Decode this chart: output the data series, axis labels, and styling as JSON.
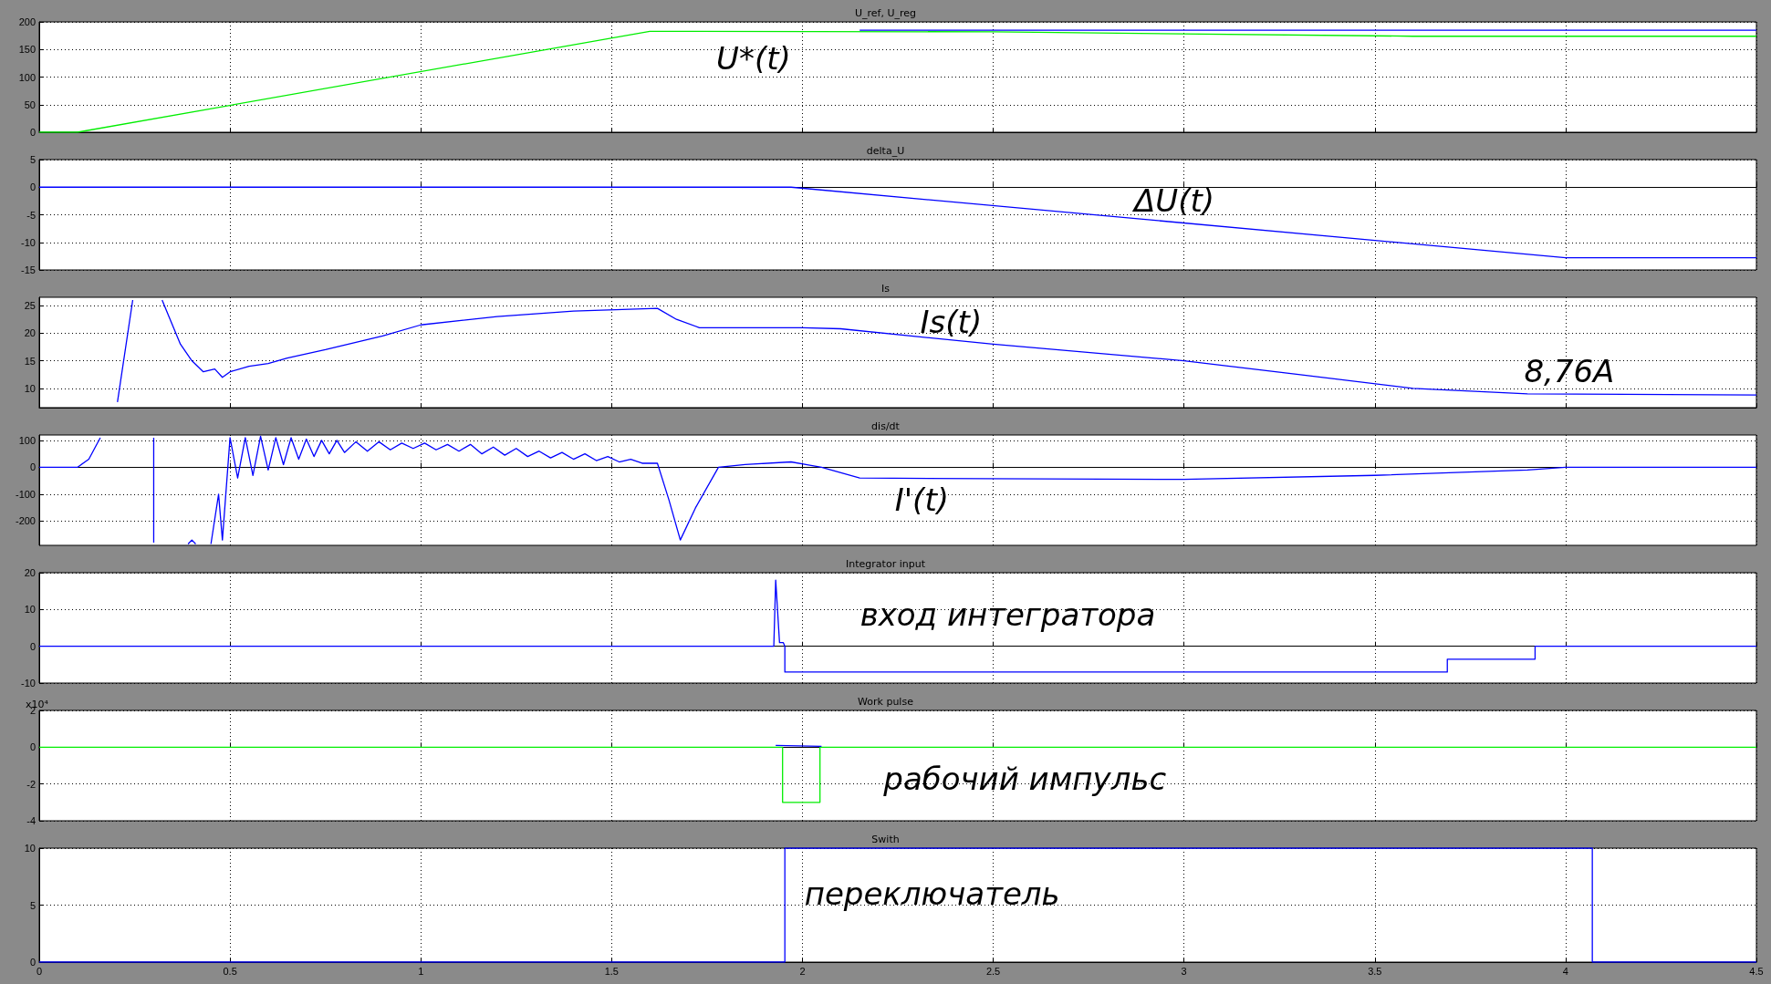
{
  "chart_data": [
    {
      "type": "line",
      "title": "U_ref, U_reg",
      "xlim": [
        0,
        4.5
      ],
      "xticks": [
        0,
        0.5,
        1,
        1.5,
        2,
        2.5,
        3,
        3.5,
        4,
        4.5
      ],
      "ylim": [
        0,
        200
      ],
      "yticks": [
        0,
        50,
        100,
        150,
        200
      ],
      "grid": true,
      "tick_labels": "y",
      "series": [
        {
          "color": "#00ee00",
          "x": [
            0,
            0.1,
            1.6,
            2.5,
            3.6,
            4.5
          ],
          "values": [
            0,
            0,
            183,
            182,
            174,
            174
          ]
        },
        {
          "color": "#0000ff",
          "x": [
            2.15,
            4.5
          ],
          "values": [
            185,
            185
          ]
        }
      ],
      "annotations": [
        "U*(t)"
      ]
    },
    {
      "type": "line",
      "title": "delta_U",
      "xlim": [
        0,
        4.5
      ],
      "xticks": [
        0,
        0.5,
        1,
        1.5,
        2,
        2.5,
        3,
        3.5,
        4,
        4.5
      ],
      "ylim": [
        -15,
        5
      ],
      "yticks": [
        -15,
        -10,
        -5,
        0,
        5
      ],
      "grid": true,
      "tick_labels": "y",
      "series": [
        {
          "color": "#0000ff",
          "x": [
            0,
            1.97,
            4.0,
            4.5
          ],
          "values": [
            0,
            0,
            -12.8,
            -12.8
          ]
        }
      ],
      "annotations": [
        "ΔU(t)"
      ]
    },
    {
      "type": "line",
      "title": "Is",
      "xlim": [
        0,
        4.5
      ],
      "xticks": [
        0,
        0.5,
        1,
        1.5,
        2,
        2.5,
        3,
        3.5,
        4,
        4.5
      ],
      "ylim": [
        6.5,
        26.5
      ],
      "yticks": [
        10,
        15,
        20,
        25
      ],
      "grid": true,
      "tick_labels": "y",
      "series": [
        {
          "color": "#0000ff",
          "x": [
            0.205,
            0.245,
            0.28,
            0.322,
            0.34,
            0.37,
            0.4,
            0.43,
            0.46,
            0.48,
            0.5,
            0.55,
            0.6,
            0.65,
            0.75,
            0.9,
            1.0,
            1.2,
            1.4,
            1.62,
            1.67,
            1.73,
            2.0,
            2.1,
            2.5,
            3.0,
            3.3,
            3.6,
            3.9,
            4.5
          ],
          "values": [
            7.5,
            26,
            null,
            26,
            23,
            18,
            15,
            13,
            13.5,
            12,
            13,
            14,
            14.5,
            15.5,
            17,
            19.5,
            21.5,
            23,
            24,
            24.5,
            22.5,
            21,
            21,
            20.8,
            18,
            15,
            12.5,
            10,
            9,
            8.8
          ]
        }
      ],
      "annotations": [
        "Is(t)",
        "8,76A"
      ]
    },
    {
      "type": "line",
      "title": "dis/dt",
      "xlim": [
        0,
        4.5
      ],
      "xticks": [
        0,
        0.5,
        1,
        1.5,
        2,
        2.5,
        3,
        3.5,
        4,
        4.5
      ],
      "ylim": [
        -290,
        120
      ],
      "yticks": [
        -200,
        -100,
        0,
        100
      ],
      "grid": true,
      "tick_labels": "y",
      "series": [
        {
          "color": "#0000ff",
          "x": [
            0,
            0.1,
            0.13,
            0.16,
            0.23,
            0.3,
            0.3,
            0.35,
            0.39,
            0.4,
            0.41,
            0.43,
            0.45,
            0.47,
            0.48,
            0.5,
            0.52,
            0.54,
            0.56,
            0.58,
            0.6,
            0.62,
            0.64,
            0.66,
            0.68,
            0.7,
            0.72,
            0.74,
            0.76,
            0.78,
            0.8,
            0.83,
            0.86,
            0.89,
            0.92,
            0.95,
            0.98,
            1.01,
            1.04,
            1.07,
            1.1,
            1.13,
            1.16,
            1.19,
            1.22,
            1.25,
            1.28,
            1.31,
            1.34,
            1.37,
            1.4,
            1.43,
            1.46,
            1.49,
            1.52,
            1.55,
            1.58,
            1.62,
            1.65,
            1.68,
            1.72,
            1.78,
            1.85,
            1.97,
            2.05,
            2.15,
            3.0,
            3.5,
            3.9,
            4.0,
            4.5
          ],
          "values": [
            0,
            0,
            30,
            110,
            null,
            110,
            -280,
            null,
            -285,
            -270,
            -285,
            null,
            -285,
            -100,
            -270,
            110,
            -40,
            110,
            -30,
            115,
            -10,
            110,
            10,
            110,
            30,
            105,
            40,
            100,
            50,
            100,
            55,
            95,
            60,
            95,
            65,
            90,
            70,
            90,
            65,
            85,
            60,
            85,
            50,
            75,
            45,
            70,
            40,
            60,
            35,
            55,
            30,
            50,
            25,
            40,
            20,
            30,
            15,
            15,
            -120,
            -270,
            -150,
            0,
            10,
            20,
            0,
            -40,
            -45,
            -30,
            -10,
            0,
            0
          ]
        }
      ],
      "annotations": [
        "I'(t)"
      ]
    },
    {
      "type": "line",
      "title": "Integrator input",
      "xlim": [
        0,
        4.5
      ],
      "xticks": [
        0,
        0.5,
        1,
        1.5,
        2,
        2.5,
        3,
        3.5,
        4,
        4.5
      ],
      "ylim": [
        -10,
        20
      ],
      "yticks": [
        -10,
        0,
        10,
        20
      ],
      "grid": true,
      "tick_labels": "y",
      "series": [
        {
          "color": "#0000ff",
          "x": [
            0,
            1.925,
            1.93,
            1.94,
            1.95,
            1.954,
            1.954,
            3.69,
            3.69,
            3.92,
            3.92,
            4.5
          ],
          "values": [
            0,
            0,
            18,
            1,
            1,
            0,
            -7,
            -7,
            -3.5,
            -3.5,
            0,
            0
          ]
        }
      ],
      "annotations": [
        "вход интегратора"
      ]
    },
    {
      "type": "line",
      "title": "Work pulse",
      "xlim": [
        0,
        4.5
      ],
      "xticks": [
        0,
        0.5,
        1,
        1.5,
        2,
        2.5,
        3,
        3.5,
        4,
        4.5
      ],
      "ylim": [
        -4,
        2
      ],
      "yticks": [
        -4,
        -2,
        0,
        2
      ],
      "grid": true,
      "tick_labels": "y",
      "series": [
        {
          "color": "#00ee00",
          "x": [
            0,
            1.948,
            1.948,
            2.046,
            2.046,
            4.5
          ],
          "values": [
            0,
            0,
            -3,
            -3,
            0,
            0
          ]
        },
        {
          "color": "#0000ff",
          "x": [
            1.93,
            2.05
          ],
          "values": [
            0.1,
            0.05
          ]
        }
      ],
      "annotations": [
        "x10⁴",
        "рабочий импульс"
      ]
    },
    {
      "type": "line",
      "title": "Swith",
      "xlim": [
        0,
        4.5
      ],
      "xticks": [
        0,
        0.5,
        1,
        1.5,
        2,
        2.5,
        3,
        3.5,
        4,
        4.5
      ],
      "ylim": [
        0,
        10
      ],
      "yticks": [
        0,
        5,
        10
      ],
      "grid": true,
      "series": [
        {
          "color": "#0000ff",
          "x": [
            0,
            1.954,
            1.954,
            4.07,
            4.07,
            4.5
          ],
          "values": [
            0,
            0,
            10,
            10,
            0,
            0
          ]
        }
      ],
      "annotations": [
        "переключатель"
      ]
    }
  ]
}
